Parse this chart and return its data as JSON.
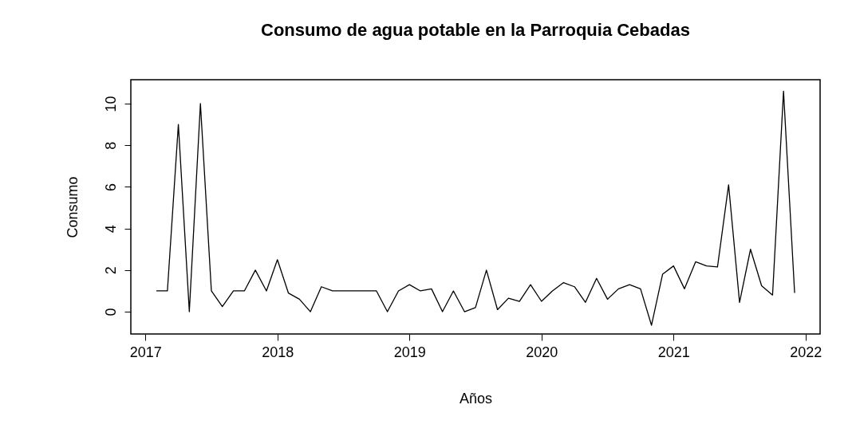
{
  "chart_data": {
    "type": "line",
    "title": "Consumo de agua potable en la Parroquia Cebadas",
    "xlabel": "Años",
    "ylabel": "Consumo",
    "x": [
      2017.083,
      2017.167,
      2017.25,
      2017.333,
      2017.417,
      2017.5,
      2017.583,
      2017.667,
      2017.75,
      2017.833,
      2017.917,
      2018,
      2018.083,
      2018.167,
      2018.25,
      2018.333,
      2018.417,
      2018.5,
      2018.583,
      2018.667,
      2018.75,
      2018.833,
      2018.917,
      2019,
      2019.083,
      2019.167,
      2019.25,
      2019.333,
      2019.417,
      2019.5,
      2019.583,
      2019.667,
      2019.75,
      2019.833,
      2019.917,
      2020,
      2020.083,
      2020.167,
      2020.25,
      2020.333,
      2020.417,
      2020.5,
      2020.583,
      2020.667,
      2020.75,
      2020.833,
      2020.917,
      2021,
      2021.083,
      2021.167,
      2021.25,
      2021.333,
      2021.417,
      2021.5,
      2021.583,
      2021.667,
      2021.75,
      2021.833,
      2021.917
    ],
    "series": [
      {
        "color": "#000000",
        "values": [
          1,
          1,
          9,
          0,
          10,
          1,
          0.25,
          1,
          1,
          2,
          1,
          2.5,
          0.9,
          0.6,
          0,
          1.2,
          1,
          1,
          1,
          1,
          1,
          0,
          1,
          1.3,
          1,
          1.1,
          0,
          1,
          0,
          0.2,
          2,
          0.1,
          0.65,
          0.5,
          1.3,
          0.5,
          1,
          1.4,
          1.2,
          0.45,
          1.6,
          0.6,
          1.1,
          1.3,
          1.1,
          -0.65,
          1.8,
          2.2,
          1.1,
          2.4,
          2.2,
          2.15,
          6.1,
          0.45,
          3,
          1.25,
          0.8,
          10.6,
          0.9
        ]
      }
    ],
    "xlim": [
      2016.89,
      2022.11
    ],
    "ylim": [
      -1.07,
      11.15
    ],
    "xticks": [
      2017,
      2018,
      2019,
      2020,
      2021,
      2022
    ],
    "yticks": [
      0,
      2,
      4,
      6,
      8,
      10
    ],
    "grid": false,
    "marker": "none",
    "line_style": "solid"
  }
}
